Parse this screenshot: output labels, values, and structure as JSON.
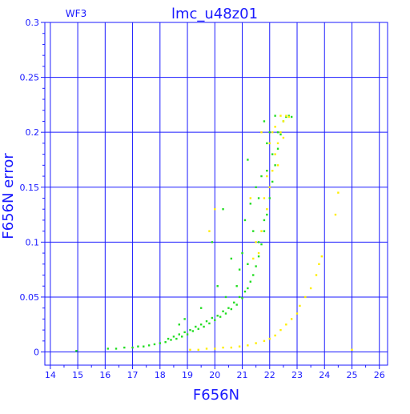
{
  "page": {
    "title": "lmc_u48z01",
    "corner_label": "WF3"
  },
  "colors": {
    "axis": "#1a1aff",
    "grid": "#1a1aff",
    "background": "#ffffff",
    "series_green": "#22dd22",
    "series_yellow": "#ffee00"
  },
  "chart_data": {
    "type": "scatter",
    "title": "lmc_u48z01",
    "annotation": "WF3",
    "xlabel": "F656N",
    "ylabel": "F656N error",
    "xlim": [
      13.8,
      26.3
    ],
    "ylim": [
      -0.012,
      0.3
    ],
    "x_ticks": [
      14,
      15,
      16,
      17,
      18,
      19,
      20,
      21,
      22,
      23,
      24,
      25,
      26
    ],
    "x_tick_labels": [
      "14",
      "15",
      "16",
      "17",
      "18",
      "19",
      "20",
      "21",
      "22",
      "23",
      "24",
      "25",
      "26"
    ],
    "y_ticks": [
      0,
      0.05,
      0.1,
      0.15,
      0.2,
      0.25,
      0.3
    ],
    "y_tick_labels": [
      "0",
      "0.05",
      "0.1",
      "0.15",
      "0.2",
      "0.25",
      "0.3"
    ],
    "grid": true,
    "series": [
      {
        "color": "#22dd22",
        "points": [
          [
            14.95,
            0.001
          ],
          [
            16.1,
            0.003
          ],
          [
            16.4,
            0.003
          ],
          [
            16.7,
            0.004
          ],
          [
            17.0,
            0.004
          ],
          [
            17.2,
            0.005
          ],
          [
            17.4,
            0.005
          ],
          [
            17.6,
            0.006
          ],
          [
            17.8,
            0.007
          ],
          [
            18.0,
            0.008
          ],
          [
            18.2,
            0.009
          ],
          [
            18.3,
            0.012
          ],
          [
            18.4,
            0.011
          ],
          [
            18.5,
            0.014
          ],
          [
            18.6,
            0.012
          ],
          [
            18.7,
            0.016
          ],
          [
            18.8,
            0.014
          ],
          [
            18.9,
            0.018
          ],
          [
            19.0,
            0.016
          ],
          [
            19.1,
            0.02
          ],
          [
            19.2,
            0.019
          ],
          [
            19.3,
            0.023
          ],
          [
            19.4,
            0.021
          ],
          [
            19.5,
            0.025
          ],
          [
            19.6,
            0.023
          ],
          [
            19.7,
            0.028
          ],
          [
            19.8,
            0.026
          ],
          [
            19.9,
            0.031
          ],
          [
            20.0,
            0.029
          ],
          [
            20.1,
            0.033
          ],
          [
            20.2,
            0.032
          ],
          [
            20.3,
            0.037
          ],
          [
            20.4,
            0.035
          ],
          [
            20.5,
            0.04
          ],
          [
            20.6,
            0.039
          ],
          [
            20.7,
            0.045
          ],
          [
            20.8,
            0.043
          ],
          [
            20.9,
            0.05
          ],
          [
            21.0,
            0.049
          ],
          [
            21.1,
            0.055
          ],
          [
            21.2,
            0.058
          ],
          [
            21.3,
            0.064
          ],
          [
            21.4,
            0.07
          ],
          [
            21.5,
            0.078
          ],
          [
            21.6,
            0.087
          ],
          [
            21.7,
            0.098
          ],
          [
            21.8,
            0.11
          ],
          [
            21.9,
            0.125
          ],
          [
            22.0,
            0.14
          ],
          [
            22.1,
            0.155
          ],
          [
            22.2,
            0.17
          ],
          [
            22.3,
            0.185
          ],
          [
            22.4,
            0.198
          ],
          [
            22.5,
            0.21
          ],
          [
            22.6,
            0.214
          ],
          [
            21.6,
            0.1
          ],
          [
            21.8,
            0.12
          ],
          [
            21.2,
            0.08
          ],
          [
            20.8,
            0.06
          ],
          [
            20.4,
            0.05
          ],
          [
            21.0,
            0.09
          ],
          [
            21.7,
            0.16
          ],
          [
            22.0,
            0.2
          ],
          [
            21.6,
            0.14
          ],
          [
            21.4,
            0.11
          ],
          [
            20.9,
            0.075
          ],
          [
            19.9,
            0.1
          ],
          [
            20.3,
            0.13
          ],
          [
            21.2,
            0.175
          ],
          [
            21.8,
            0.21
          ],
          [
            22.2,
            0.215
          ],
          [
            22.7,
            0.215
          ],
          [
            22.8,
            0.214
          ],
          [
            21.9,
            0.19
          ],
          [
            21.5,
            0.15
          ],
          [
            18.9,
            0.03
          ],
          [
            18.7,
            0.025
          ],
          [
            19.5,
            0.04
          ],
          [
            20.1,
            0.06
          ],
          [
            20.6,
            0.085
          ],
          [
            21.1,
            0.12
          ],
          [
            21.3,
            0.135
          ],
          [
            21.9,
            0.165
          ],
          [
            22.1,
            0.18
          ],
          [
            22.3,
            0.2
          ]
        ]
      },
      {
        "color": "#ffee00",
        "points": [
          [
            19.1,
            0.002
          ],
          [
            19.4,
            0.002
          ],
          [
            19.7,
            0.003
          ],
          [
            20.0,
            0.003
          ],
          [
            20.3,
            0.004
          ],
          [
            20.6,
            0.004
          ],
          [
            20.9,
            0.005
          ],
          [
            21.2,
            0.006
          ],
          [
            21.5,
            0.008
          ],
          [
            21.8,
            0.01
          ],
          [
            22.0,
            0.012
          ],
          [
            22.2,
            0.015
          ],
          [
            22.4,
            0.02
          ],
          [
            22.6,
            0.025
          ],
          [
            22.8,
            0.03
          ],
          [
            23.0,
            0.035
          ],
          [
            23.1,
            0.042
          ],
          [
            23.3,
            0.05
          ],
          [
            23.5,
            0.058
          ],
          [
            23.7,
            0.07
          ],
          [
            23.8,
            0.08
          ],
          [
            23.9,
            0.087
          ],
          [
            24.4,
            0.125
          ],
          [
            24.5,
            0.145
          ],
          [
            25.0,
            0.002
          ],
          [
            21.7,
            0.11
          ],
          [
            21.9,
            0.13
          ],
          [
            22.0,
            0.15
          ],
          [
            22.1,
            0.165
          ],
          [
            22.2,
            0.18
          ],
          [
            22.3,
            0.19
          ],
          [
            22.4,
            0.2
          ],
          [
            22.5,
            0.21
          ],
          [
            22.6,
            0.215
          ],
          [
            22.7,
            0.214
          ],
          [
            21.6,
            0.09
          ],
          [
            21.5,
            0.1
          ],
          [
            21.8,
            0.14
          ],
          [
            22.1,
            0.2
          ],
          [
            21.4,
            0.085
          ],
          [
            20.0,
            0.13
          ],
          [
            19.8,
            0.11
          ],
          [
            21.3,
            0.14
          ],
          [
            21.7,
            0.2
          ],
          [
            22.3,
            0.17
          ],
          [
            22.5,
            0.195
          ],
          [
            22.0,
            0.19
          ],
          [
            21.9,
            0.16
          ],
          [
            22.2,
            0.205
          ],
          [
            22.4,
            0.215
          ]
        ]
      }
    ]
  }
}
